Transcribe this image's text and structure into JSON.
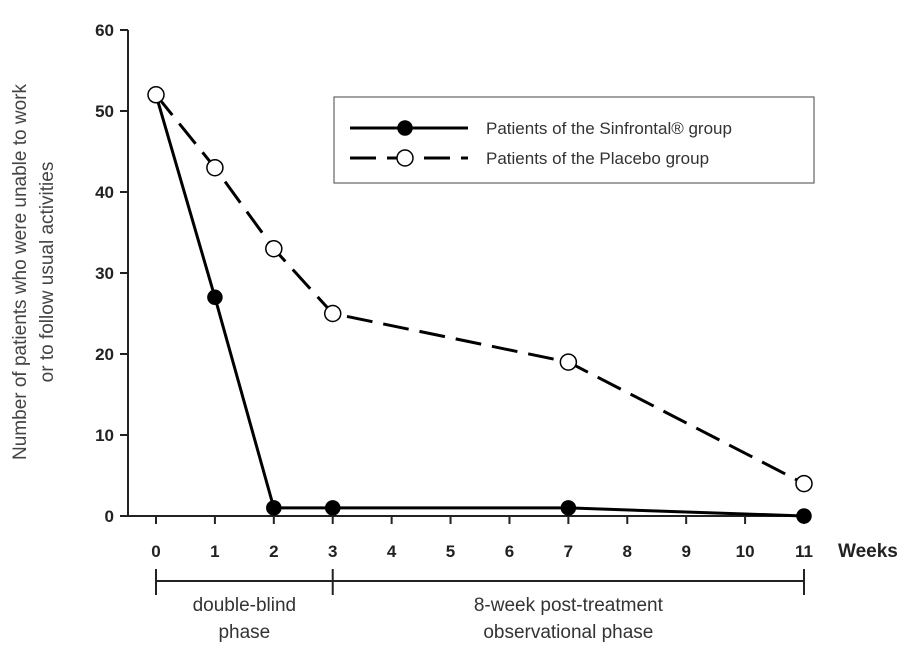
{
  "chart_data": {
    "type": "line",
    "ylabel_lines": [
      "Number of patients who were unable to work",
      "or to follow usual activities"
    ],
    "xlabel": "Weeks",
    "ylim": [
      0,
      60
    ],
    "yticks": [
      0,
      10,
      20,
      30,
      40,
      50,
      60
    ],
    "xlim": [
      0,
      11
    ],
    "xticks": [
      0,
      1,
      2,
      3,
      4,
      5,
      6,
      7,
      8,
      9,
      10,
      11
    ],
    "grid": false,
    "legend_position": "top-right",
    "series": [
      {
        "name": "Patients of the Sinfrontal® group",
        "style": "solid",
        "marker": "filled-circle",
        "color": "#000000",
        "x": [
          0,
          1,
          2,
          3,
          7,
          11
        ],
        "y": [
          52,
          27,
          1,
          1,
          1,
          0
        ]
      },
      {
        "name": "Patients of the Placebo group",
        "style": "dashed",
        "marker": "open-circle",
        "color": "#000000",
        "x": [
          0,
          1,
          2,
          3,
          7,
          11
        ],
        "y": [
          52,
          43,
          33,
          25,
          19,
          4
        ]
      }
    ],
    "phases": [
      {
        "label_lines": [
          "double-blind",
          "phase"
        ],
        "from": 0,
        "to": 3
      },
      {
        "label_lines": [
          "8-week post-treatment",
          "observational phase"
        ],
        "from": 3,
        "to": 11
      }
    ]
  }
}
